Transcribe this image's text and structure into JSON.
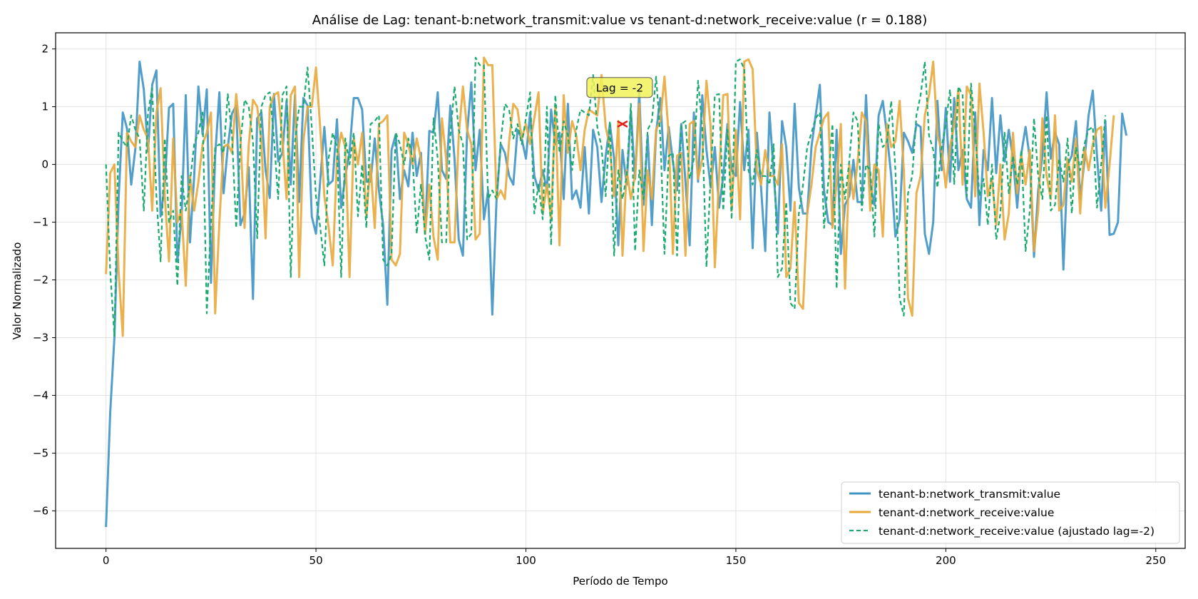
{
  "chart_data": {
    "type": "line",
    "title": "Análise de Lag: tenant-b:network_transmit:value vs tenant-d:network_receive:value (r = 0.188)",
    "xlabel": "Período de Tempo",
    "ylabel": "Valor Normalizado",
    "xlim": [
      -12,
      257
    ],
    "ylim": [
      -6.65,
      2.28
    ],
    "xticks": [
      0,
      50,
      100,
      150,
      200,
      250
    ],
    "yticks": [
      2,
      1,
      0,
      -1,
      -2,
      -3,
      -4,
      -5,
      -6
    ],
    "xtick_labels": [
      "0",
      "50",
      "100",
      "150",
      "200",
      "250"
    ],
    "ytick_labels": [
      "2",
      "1",
      "0",
      "−1",
      "−2",
      "−3",
      "−4",
      "−5",
      "−6"
    ],
    "grid": true,
    "legend_position": "lower-right",
    "annotation": {
      "text": "Lag = -2",
      "x": 123,
      "y": 0.7,
      "marker": "x",
      "marker_color": "#e31a1c",
      "box_color": "#f2f25a"
    },
    "series": [
      {
        "name": "tenant-b:network_transmit:value",
        "color": "#3f94c4",
        "style": "solid",
        "x_start": 0,
        "values": [
          -6.28,
          -4.3,
          -3.0,
          -0.6,
          0.9,
          0.62,
          -0.35,
          0.28,
          1.78,
          1.3,
          0.22,
          1.38,
          1.63,
          -0.9,
          -0.35,
          0.98,
          1.05,
          -1.68,
          -0.9,
          1.2,
          -1.35,
          -0.2,
          1.35,
          0.52,
          1.3,
          -2.05,
          0.15,
          1.25,
          -0.5,
          0.3,
          0.88,
          1.02,
          -1.05,
          -0.85,
          -0.05,
          -2.33,
          0.8,
          0.9,
          -0.1,
          -0.58,
          1.22,
          0.05,
          0.2,
          1.1,
          -0.35,
          1.2,
          -0.65,
          1.15,
          1.02,
          -0.9,
          -1.2,
          -0.3,
          0.65,
          -0.35,
          -0.28,
          0.78,
          -0.75,
          -0.2,
          0.22,
          1.15,
          1.15,
          0.95,
          -0.3,
          -0.3,
          0.45,
          -0.45,
          -1.05,
          -2.43,
          0.25,
          0.52,
          -0.6,
          -0.1,
          -0.38,
          0.55,
          -0.2,
          0.2,
          -1.2,
          0.58,
          0.55,
          1.25,
          -0.1,
          -0.25,
          1.02,
          0.1,
          -1.3,
          -1.58,
          0.55,
          1.42,
          -0.1,
          0.6,
          -0.95,
          -0.45,
          -2.6,
          -0.62,
          0.35,
          0.2,
          -0.2,
          -0.35,
          0.6,
          0.45,
          0.1,
          0.9,
          -0.2,
          -0.45,
          -0.1,
          -0.45,
          0.95,
          0.35,
          0.55,
          -0.6,
          1.05,
          -0.6,
          -0.45,
          -0.75,
          0.3,
          -0.85,
          0.6,
          0.3,
          -0.65,
          0.15,
          0.7,
          0.1,
          -1.4,
          0.25,
          -0.35,
          0.92,
          -0.25,
          1.25,
          -0.7,
          0.5,
          -1.05,
          0.55,
          1.15,
          -0.1,
          0.65,
          0.05,
          -0.45,
          0.7,
          -0.3,
          -1.4,
          0.9,
          -0.3,
          1.2,
          0.25,
          -0.4,
          0.3,
          -0.75,
          -0.2,
          0.7,
          -0.1,
          -0.2,
          1.08,
          -0.1,
          0.6,
          -1.45,
          0.55,
          -0.4,
          -1.5,
          0.9,
          -0.15,
          -1.2,
          0.75,
          0.3,
          -0.8,
          1.05,
          -0.4,
          -0.85,
          -0.85,
          0.3,
          0.85,
          1.38,
          -0.45,
          -1.0,
          -1.05,
          0.6,
          -1.55,
          -0.7,
          -0.55,
          0.08,
          -0.65,
          -0.65,
          1.2,
          -0.35,
          -0.7,
          0.85,
          1.1,
          0.5,
          -0.2,
          -1.25,
          -0.95,
          0.55,
          0.4,
          0.2,
          0.7,
          0.65,
          -1.2,
          -1.55,
          -1.0,
          1.1,
          -0.1,
          0.98,
          -0.3,
          1.15,
          -0.1,
          0.25,
          -0.6,
          -0.75,
          0.9,
          -1.05,
          0.25,
          -0.1,
          1.15,
          -0.15,
          0.85,
          0.05,
          0.6,
          0.1,
          -0.75,
          0.2,
          0.65,
          0.1,
          -1.6,
          -0.45,
          0.15,
          1.25,
          0.1,
          0.55,
          0.35,
          -1.82,
          0.0,
          0.15,
          0.75,
          -0.6,
          0.05,
          0.85,
          1.28,
          0.15,
          -0.8,
          0.75,
          -1.22,
          -1.2,
          -1.0,
          0.88,
          0.5
        ]
      },
      {
        "name": "tenant-d:network_receive:value",
        "color": "#e8a93b",
        "style": "solid",
        "x_start": 0,
        "values": [
          -1.9,
          -0.15,
          0.0,
          -1.85,
          -2.97,
          0.55,
          0.4,
          0.3,
          0.85,
          0.6,
          0.45,
          -0.8,
          0.9,
          1.32,
          -0.55,
          -1.68,
          0.45,
          -1.0,
          -0.8,
          -2.1,
          -0.2,
          -0.8,
          -0.3,
          0.35,
          0.55,
          0.9,
          -2.58,
          -1.0,
          0.3,
          0.35,
          0.2,
          1.22,
          0.5,
          -1.1,
          0.35,
          1.12,
          1.0,
          0.4,
          -1.28,
          1.0,
          1.2,
          1.25,
          0.45,
          -0.6,
          1.2,
          1.35,
          -1.95,
          0.4,
          1.0,
          1.0,
          1.68,
          0.65,
          -0.55,
          -1.08,
          -1.75,
          0.1,
          0.55,
          0.3,
          -1.95,
          0.45,
          0.0,
          0.55,
          -0.9,
          0.0,
          -1.1,
          0.7,
          0.75,
          0.85,
          -1.65,
          -1.75,
          -1.55,
          0.55,
          0.35,
          0.0,
          0.45,
          0.1,
          -1.2,
          -0.35,
          -1.25,
          -1.65,
          0.8,
          0.1,
          -1.35,
          -1.35,
          0.5,
          1.35,
          0.6,
          0.35,
          -1.3,
          -1.2,
          1.85,
          1.72,
          1.72,
          -0.6,
          -0.45,
          -0.6,
          0.4,
          1.05,
          0.95,
          0.45,
          0.7,
          0.35,
          0.8,
          1.25,
          -0.85,
          -0.35,
          -0.95,
          1.0,
          -1.4,
          1.2,
          0.2,
          0.75,
          0.5,
          -0.1,
          0.6,
          0.95,
          0.9,
          0.85,
          1.55,
          0.65,
          0.3,
          -0.55,
          0.75,
          -1.58,
          -0.1,
          -0.6,
          -0.2,
          1.05,
          -1.5,
          -0.1,
          -0.6,
          0.6,
          0.75,
          1.52,
          0.5,
          -1.55,
          0.15,
          0.2,
          -1.58,
          0.7,
          0.75,
          -0.25,
          0.1,
          1.45,
          0.65,
          -1.78,
          -0.2,
          1.2,
          1.22,
          -0.8,
          0.6,
          -0.95,
          1.78,
          1.82,
          1.65,
          -0.1,
          -0.35,
          0.25,
          -0.2,
          -0.2,
          -0.35,
          0.35,
          -1.95,
          -1.8,
          -0.65,
          -2.4,
          -2.5,
          -0.85,
          -0.35,
          0.3,
          0.55,
          0.8,
          0.9,
          -1.1,
          -0.3,
          0.7,
          -2.15,
          0.0,
          -0.6,
          0.05,
          0.9,
          0.75,
          -0.8,
          0.0,
          -0.1,
          -1.25,
          0.7,
          0.3,
          0.4,
          1.1,
          -0.1,
          -2.32,
          -2.62,
          -0.5,
          -0.2,
          0.85,
          1.2,
          1.78,
          0.5,
          0.25,
          -0.4,
          0.3,
          0.7,
          1.3,
          -0.35,
          1.35,
          1.2,
          -0.55,
          1.4,
          0.55,
          -0.55,
          -0.25,
          -1.05,
          0.0,
          -1.3,
          -0.85,
          0.55,
          -0.5,
          0.15,
          -0.35,
          0.25,
          -1.5,
          -0.8,
          0.8,
          -0.2,
          -0.6,
          0.85,
          -0.8,
          -0.7,
          0.1,
          -0.3,
          0.45,
          -0.85,
          0.3,
          -0.1,
          0.35,
          0.6,
          0.65,
          -0.75,
          0.0,
          0.85
        ]
      },
      {
        "name": "tenant-d:network_receive:value (ajustado lag=-2)",
        "color": "#1aaa6e",
        "style": "dashed",
        "x_start": 0,
        "values": [
          0.0,
          -1.85,
          -2.97,
          0.55,
          0.4,
          0.3,
          0.85,
          0.6,
          0.45,
          -0.8,
          0.9,
          1.32,
          -0.55,
          -1.68,
          0.45,
          -1.0,
          -0.8,
          -2.1,
          -0.2,
          -0.8,
          -0.3,
          0.35,
          0.55,
          0.9,
          -2.58,
          -1.0,
          0.3,
          0.35,
          0.2,
          1.22,
          0.5,
          -1.1,
          0.35,
          1.12,
          1.0,
          0.4,
          -1.28,
          1.0,
          1.2,
          1.25,
          0.45,
          -0.6,
          1.2,
          1.35,
          -1.95,
          0.4,
          1.0,
          1.0,
          1.68,
          0.65,
          -0.55,
          -1.08,
          -1.75,
          0.1,
          0.55,
          0.3,
          -1.95,
          0.45,
          0.0,
          0.55,
          -0.9,
          0.0,
          -1.1,
          0.7,
          0.75,
          0.85,
          -1.65,
          -1.75,
          -1.55,
          0.55,
          0.35,
          0.0,
          0.45,
          0.1,
          -1.2,
          -0.35,
          -1.25,
          -1.65,
          0.8,
          0.1,
          -1.35,
          -1.35,
          0.5,
          1.35,
          0.6,
          0.35,
          -1.3,
          -1.2,
          1.85,
          1.72,
          1.72,
          -0.6,
          -0.45,
          -0.6,
          0.4,
          1.05,
          0.95,
          0.45,
          0.7,
          0.35,
          0.8,
          1.25,
          -0.85,
          -0.35,
          -0.95,
          1.0,
          -1.4,
          1.2,
          0.2,
          0.75,
          0.5,
          -0.1,
          0.6,
          0.95,
          0.9,
          0.85,
          1.55,
          0.65,
          0.3,
          -0.55,
          0.75,
          -1.58,
          -0.1,
          -0.6,
          -0.2,
          1.05,
          -1.5,
          -0.1,
          -0.6,
          0.6,
          0.75,
          1.52,
          0.5,
          -1.55,
          0.15,
          0.2,
          -1.58,
          0.7,
          0.75,
          -0.25,
          0.1,
          1.45,
          0.65,
          -1.78,
          -0.2,
          1.2,
          1.22,
          -0.8,
          0.6,
          -0.95,
          1.78,
          1.82,
          1.65,
          -0.1,
          -0.35,
          0.25,
          -0.2,
          -0.2,
          -0.35,
          0.35,
          -1.95,
          -1.8,
          -0.65,
          -2.4,
          -2.5,
          -0.85,
          -0.35,
          0.3,
          0.55,
          0.8,
          0.9,
          -1.1,
          -0.3,
          0.7,
          -2.15,
          0.0,
          -0.6,
          0.05,
          0.9,
          0.75,
          -0.8,
          0.0,
          -0.1,
          -1.25,
          0.7,
          0.3,
          0.4,
          1.1,
          -0.1,
          -2.32,
          -2.62,
          -0.5,
          -0.2,
          0.85,
          1.2,
          1.78,
          0.5,
          0.25,
          -0.4,
          0.3,
          0.7,
          1.3,
          -0.35,
          1.35,
          1.2,
          -0.55,
          1.4,
          0.55,
          -0.55,
          -0.25,
          -1.05,
          0.0,
          -1.3,
          -0.85,
          0.55,
          -0.5,
          0.15,
          -0.35,
          0.25,
          -1.5,
          -0.8,
          0.8,
          -0.2,
          -0.6,
          0.85,
          -0.8,
          -0.7,
          0.1,
          -0.3,
          0.45,
          -0.85,
          0.3,
          -0.1,
          0.35,
          0.6,
          0.65,
          -0.75,
          0.0,
          0.85
        ]
      }
    ]
  }
}
